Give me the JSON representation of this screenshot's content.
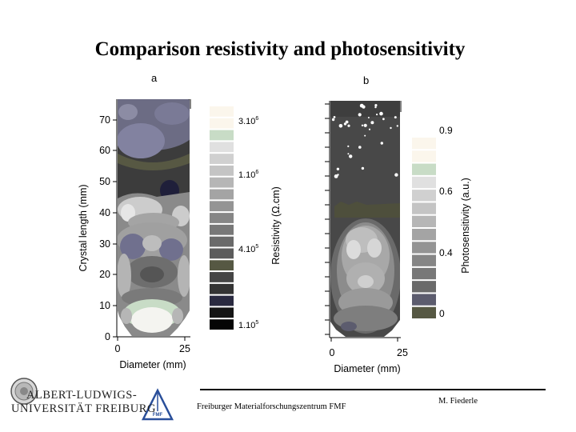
{
  "title": "Comparison resistivity and photosensitivity",
  "chart_data": [
    {
      "type": "heatmap",
      "panel": "a",
      "xlabel": "Diameter (mm)",
      "ylabel": "Crystal length (mm)",
      "x_ticks": [
        "0",
        "25"
      ],
      "y_ticks": [
        "0",
        "10",
        "20",
        "30",
        "40",
        "50",
        "60",
        "70"
      ],
      "xlim": [
        0,
        25
      ],
      "ylim": [
        0,
        77
      ],
      "colorbar": {
        "label": "Resistivity (Ω.cm)",
        "labels": [
          {
            "text": "3.10",
            "exp": "6"
          },
          {
            "text": "1.10",
            "exp": "6"
          },
          {
            "text": "4.10",
            "exp": "5"
          },
          {
            "text": "1.10",
            "exp": "5"
          }
        ],
        "colors": [
          "#fbf6ec",
          "#fbf6ec",
          "#c8dcc6",
          "#e0e0e0",
          "#d0d0d0",
          "#c4c4c4",
          "#b6b6b6",
          "#a4a4a4",
          "#949494",
          "#868686",
          "#787878",
          "#6a6a6a",
          "#5c5c5c",
          "#565843",
          "#454545",
          "#343434",
          "#2a2a40",
          "#151515",
          "#050505"
        ]
      }
    },
    {
      "type": "heatmap",
      "panel": "b",
      "xlabel": "Diameter (mm)",
      "ylabel": "",
      "x_ticks": [
        "0",
        "25"
      ],
      "xlim": [
        0,
        25
      ],
      "colorbar": {
        "label": "Photosensitivity (a.u.)",
        "labels": [
          "0.9",
          "0.6",
          "0.4",
          "0"
        ],
        "colors": [
          "#fbf6ec",
          "#fbf6ec",
          "#c8dcc6",
          "#e0e0e0",
          "#d0d0d0",
          "#c4c4c4",
          "#b6b6b6",
          "#a4a4a4",
          "#949494",
          "#868686",
          "#787878",
          "#6a6a6a",
          "#5c5c6e",
          "#565843"
        ]
      }
    }
  ],
  "footer": {
    "university_line1": "ALBERT-LUDWIGS-",
    "university_line2": "UNIVERSITÄT FREIBURG",
    "logo_text": "FMF",
    "center": "Freiburger Materialforschungszentrum FMF",
    "author": "M. Fiederle"
  }
}
